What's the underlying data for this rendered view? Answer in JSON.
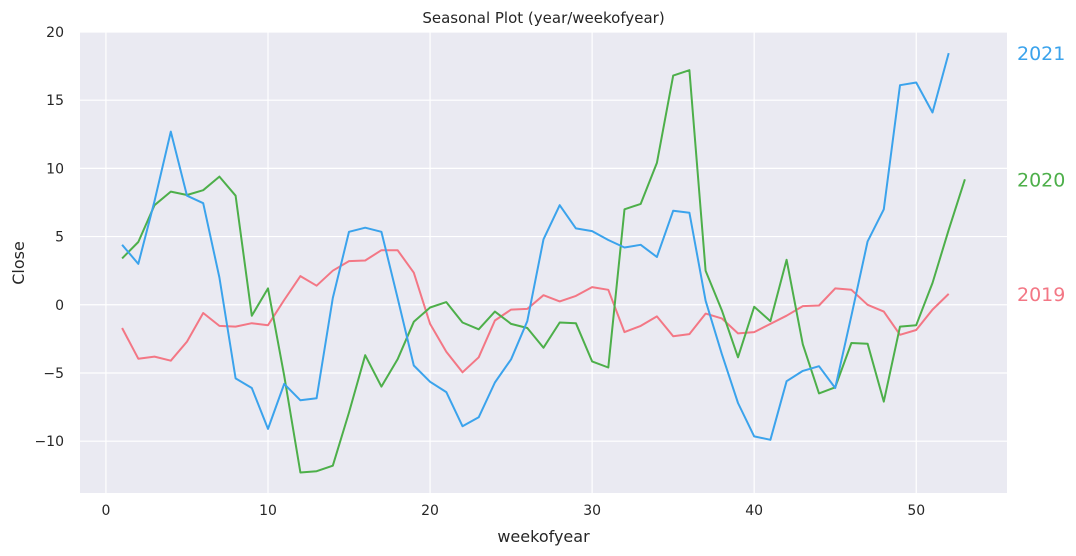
{
  "chart_data": {
    "type": "line",
    "title": "Seasonal Plot (year/weekofyear)",
    "xlabel": "weekofyear",
    "ylabel": "Close",
    "xlim": [
      -1.6,
      55.6
    ],
    "ylim": [
      -13.8,
      20
    ],
    "xticks": [
      0,
      10,
      20,
      30,
      40,
      50
    ],
    "yticks": [
      20,
      15,
      10,
      5,
      0,
      -5,
      -10
    ],
    "ytick_labels": [
      "20",
      "15",
      "10",
      "5",
      "0",
      "−5",
      "−10"
    ],
    "grid": true,
    "background": "#eaeaf2",
    "legend": "end-of-line labels on right",
    "series": [
      {
        "name": "2019",
        "color": "#f37785",
        "x": [
          1,
          2,
          3,
          4,
          5,
          6,
          7,
          8,
          9,
          10,
          11,
          12,
          13,
          14,
          15,
          16,
          17,
          18,
          19,
          20,
          21,
          22,
          23,
          24,
          25,
          26,
          27,
          28,
          29,
          30,
          31,
          32,
          33,
          34,
          35,
          36,
          37,
          38,
          39,
          40,
          41,
          42,
          43,
          44,
          45,
          46,
          47,
          48,
          49,
          50,
          51,
          52
        ],
        "values": [
          -1.7,
          -3.95,
          -3.8,
          -4.1,
          -2.7,
          -0.6,
          -1.55,
          -1.6,
          -1.35,
          -1.5,
          0.35,
          2.1,
          1.4,
          2.5,
          3.2,
          3.25,
          4.0,
          4.0,
          2.35,
          -1.4,
          -3.45,
          -4.95,
          -3.85,
          -1.15,
          -0.35,
          -0.3,
          0.7,
          0.25,
          0.65,
          1.3,
          1.1,
          -2.0,
          -1.55,
          -0.85,
          -2.3,
          -2.15,
          -0.65,
          -1.0,
          -2.1,
          -2.0,
          -1.4,
          -0.8,
          -0.1,
          -0.05,
          1.2,
          1.1,
          0.0,
          -0.5,
          -2.2,
          -1.85,
          -0.35,
          0.8
        ]
      },
      {
        "name": "2020",
        "color": "#4daf4a",
        "x": [
          1,
          2,
          3,
          4,
          5,
          6,
          7,
          8,
          9,
          10,
          11,
          12,
          13,
          14,
          15,
          16,
          17,
          18,
          19,
          20,
          21,
          22,
          23,
          24,
          25,
          26,
          27,
          28,
          29,
          30,
          31,
          32,
          33,
          34,
          35,
          36,
          37,
          38,
          39,
          40,
          41,
          42,
          43,
          44,
          45,
          46,
          47,
          48,
          49,
          50,
          51,
          52,
          53
        ],
        "values": [
          3.4,
          4.6,
          7.3,
          8.3,
          8.05,
          8.4,
          9.4,
          8.0,
          -0.8,
          1.2,
          -5.2,
          -12.3,
          -12.2,
          -11.8,
          -7.9,
          -3.7,
          -6.0,
          -4.0,
          -1.25,
          -0.2,
          0.2,
          -1.3,
          -1.8,
          -0.5,
          -1.4,
          -1.7,
          -3.15,
          -1.3,
          -1.35,
          -4.15,
          -4.6,
          7.0,
          7.4,
          10.4,
          16.8,
          17.2,
          2.5,
          -0.4,
          -3.85,
          -0.15,
          -1.2,
          3.3,
          -2.9,
          -6.5,
          -6.05,
          -2.8,
          -2.85,
          -7.1,
          -1.6,
          -1.5,
          1.6,
          5.5,
          9.2
        ]
      },
      {
        "name": "2021",
        "color": "#3ba3ec",
        "x": [
          1,
          2,
          3,
          4,
          5,
          6,
          7,
          8,
          9,
          10,
          11,
          12,
          13,
          14,
          15,
          16,
          17,
          18,
          19,
          20,
          21,
          22,
          23,
          24,
          25,
          26,
          27,
          28,
          29,
          30,
          31,
          32,
          33,
          34,
          35,
          36,
          37,
          38,
          39,
          40,
          41,
          42,
          43,
          44,
          45,
          46,
          47,
          48,
          49,
          50,
          51,
          52
        ],
        "values": [
          4.4,
          3.0,
          7.6,
          12.7,
          8.0,
          7.45,
          2.0,
          -5.4,
          -6.1,
          -9.1,
          -5.8,
          -7.0,
          -6.85,
          0.5,
          5.35,
          5.65,
          5.35,
          0.5,
          -4.45,
          -5.65,
          -6.4,
          -8.9,
          -8.25,
          -5.7,
          -4.0,
          -1.2,
          4.8,
          7.3,
          5.6,
          5.4,
          4.75,
          4.2,
          4.4,
          3.5,
          6.9,
          6.75,
          0.3,
          -3.6,
          -7.2,
          -9.65,
          -9.9,
          -5.6,
          -4.85,
          -4.5,
          -6.1,
          -0.8,
          4.65,
          7.0,
          16.1,
          16.3,
          14.1,
          18.45
        ]
      }
    ]
  }
}
